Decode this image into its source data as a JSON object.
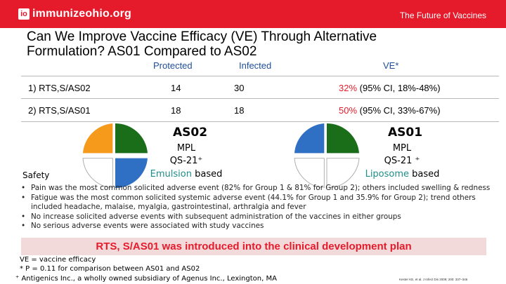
{
  "header": {
    "logo_mark": "io",
    "logo_text": "immunizeohio.org",
    "tagline": "The Future of Vaccines"
  },
  "title": "Can We Improve Vaccine Efficacy (VE) Through Alternative Formulation? AS01 Compared to AS02",
  "table": {
    "columns": [
      "Protected",
      "Infected",
      "VE*"
    ],
    "rows": [
      {
        "name": "1) RTS,S/AS02",
        "protected": "14",
        "infected": "30",
        "ve_pct": "32%",
        "ve_ci": "(95% CI, 18%-48%)"
      },
      {
        "name": "2) RTS,S/AS01",
        "protected": "18",
        "infected": "18",
        "ve_pct": "50%",
        "ve_ci": "(95% CI, 33%-67%)"
      }
    ]
  },
  "as02": {
    "title": "AS02",
    "line1": "MPL",
    "line2": "QS-21⁺",
    "emph": "Emulsion",
    "suffix": " based"
  },
  "as01": {
    "title": "AS01",
    "line1": "MPL",
    "line2": "QS-21 ⁺",
    "emph": "Liposome",
    "suffix": " based"
  },
  "colors": {
    "red": "#e51b2c",
    "teal": "#1e8e88",
    "pie_green": "#1a6e1a",
    "pie_orange": "#f59a1a",
    "pie_blue": "#2f6fc4"
  },
  "safety": {
    "label": "Safety",
    "bullets": [
      "Pain was the most common solicited adverse event (82% for Group 1 & 81% for Group 2); others included  swelling & redness",
      "Fatigue was the most common solicited systemic adverse event (44.1% for Group 1 and 35.9% for Group 2); trend others included  headache, malaise, myalgia, gastrointestinal, arthralgia and fever",
      "No increase solicited adverse events with subsequent administration of the vaccines in either groups",
      "No serious adverse events were associated with study vaccines"
    ]
  },
  "banner": "RTS, S/AS01 was introduced into the clinical development plan",
  "footnotes": [
    "VE = vaccine efficacy",
    "* P = 0.11 for comparison between AS01 and AS02",
    "⁺ Antigenics Inc., a wholly owned subsidiary of Agenus Inc., Lexington, MA"
  ],
  "citation": "Kester KE, et al. J Infect Dis 2009; 200: 337–346"
}
